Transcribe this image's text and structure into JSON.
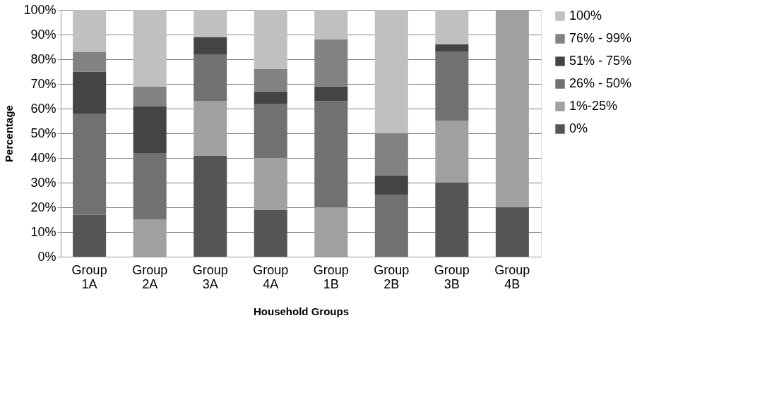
{
  "chart_data": {
    "type": "bar",
    "stacked": true,
    "xlabel": "Household Groups",
    "ylabel": "Percentage",
    "categories": [
      "Group 1A",
      "Group 2A",
      "Group 3A",
      "Group 4A",
      "Group 1B",
      "Group 2B",
      "Group 3B",
      "Group 4B"
    ],
    "series": [
      {
        "name": "0%",
        "color": "#555555",
        "values": [
          17,
          0,
          41,
          19,
          0,
          0,
          30,
          20
        ]
      },
      {
        "name": "1%-25%",
        "color": "#a0a0a0",
        "values": [
          0,
          15,
          22,
          21,
          20,
          0,
          25,
          80
        ]
      },
      {
        "name": "26% - 50%",
        "color": "#717171",
        "values": [
          41,
          27,
          19,
          22,
          43,
          25,
          28,
          0
        ]
      },
      {
        "name": "51% - 75%",
        "color": "#444444",
        "values": [
          17,
          19,
          7,
          5,
          6,
          8,
          3,
          0
        ]
      },
      {
        "name": "76% - 99%",
        "color": "#828282",
        "values": [
          8,
          8,
          0,
          9,
          19,
          17,
          0,
          0
        ]
      },
      {
        "name": "100%",
        "color": "#c0c0c0",
        "values": [
          17,
          31,
          11,
          24,
          12,
          50,
          14,
          0
        ]
      }
    ],
    "ylim": [
      0,
      100
    ],
    "yticks": [
      {
        "value": 0,
        "label": "0%"
      },
      {
        "value": 10,
        "label": "10%"
      },
      {
        "value": 20,
        "label": "20%"
      },
      {
        "value": 30,
        "label": "30%"
      },
      {
        "value": 40,
        "label": "40%"
      },
      {
        "value": 50,
        "label": "50%"
      },
      {
        "value": 60,
        "label": "60%"
      },
      {
        "value": 70,
        "label": "70%"
      },
      {
        "value": 80,
        "label": "80%"
      },
      {
        "value": 90,
        "label": "90%"
      },
      {
        "value": 100,
        "label": "100%"
      }
    ],
    "grid": "y",
    "legend": "right"
  }
}
